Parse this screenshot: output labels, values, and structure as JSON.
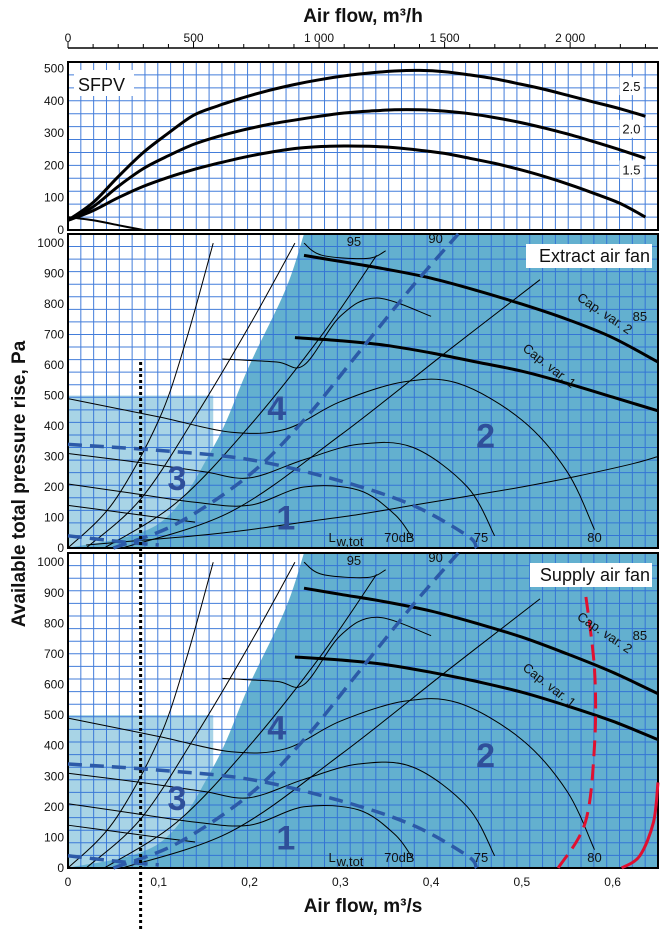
{
  "chart_data": [
    {
      "type": "line",
      "panel": "sfp",
      "title": "SFPV",
      "xlabel": "Air flow, m³/h",
      "xticks": [
        "0",
        "500",
        "1 000",
        "1 500",
        "2 000"
      ],
      "yticks": [
        "0",
        "100",
        "200",
        "300",
        "400",
        "500"
      ],
      "xlim": [
        0,
        2350
      ],
      "ylim": [
        0,
        520
      ],
      "series": [
        {
          "name": "2.5",
          "x": [
            0,
            100,
            200,
            300,
            400,
            500,
            600,
            700,
            800,
            900,
            1000,
            1100,
            1200,
            1300,
            1400,
            1500,
            1600,
            1700,
            1800,
            1900,
            2000,
            2100,
            2200,
            2300
          ],
          "y": [
            30,
            85,
            165,
            240,
            300,
            355,
            385,
            410,
            432,
            450,
            465,
            477,
            486,
            492,
            494,
            490,
            480,
            468,
            452,
            435,
            415,
            395,
            375,
            352
          ]
        },
        {
          "name": "2.0",
          "x": [
            0,
            100,
            200,
            300,
            400,
            500,
            600,
            700,
            800,
            900,
            1000,
            1100,
            1200,
            1300,
            1400,
            1500,
            1600,
            1700,
            1800,
            1900,
            2000,
            2100,
            2200,
            2300
          ],
          "y": [
            30,
            72,
            135,
            190,
            230,
            265,
            290,
            310,
            327,
            340,
            352,
            362,
            368,
            372,
            372,
            368,
            360,
            348,
            333,
            315,
            295,
            272,
            248,
            222
          ]
        },
        {
          "name": "1.5",
          "x": [
            0,
            100,
            200,
            300,
            400,
            500,
            600,
            700,
            800,
            900,
            1000,
            1100,
            1200,
            1300,
            1400,
            1500,
            1600,
            1700,
            1800,
            1900,
            2000,
            2100,
            2200,
            2300
          ],
          "y": [
            30,
            60,
            100,
            135,
            163,
            187,
            207,
            225,
            240,
            252,
            258,
            260,
            259,
            255,
            247,
            237,
            222,
            206,
            187,
            165,
            140,
            112,
            82,
            40
          ]
        },
        {
          "name": "",
          "x": [
            0,
            100,
            200,
            300
          ],
          "y": [
            40,
            30,
            15,
            0
          ]
        }
      ],
      "curve_labels": [
        "2.5",
        "2.0",
        "1.5"
      ]
    },
    {
      "type": "line",
      "panel": "extract",
      "title": "Extract air fan",
      "ylabel": "Available total pressure rise, Pa",
      "yticks": [
        "0",
        "100",
        "200",
        "300",
        "400",
        "500",
        "600",
        "700",
        "800",
        "900",
        "1000"
      ],
      "xlim": [
        0,
        0.65
      ],
      "ylim": [
        0,
        1030
      ],
      "capacity_labels": [
        "Cap. var. 2",
        "Cap. var. 1"
      ],
      "zones": [
        "1",
        "2",
        "3",
        "4"
      ],
      "sound_labels": [
        "95",
        "90",
        "85",
        "80",
        "75",
        "70dB"
      ],
      "sound_prefix": "L",
      "sound_subscript": "w,tot",
      "series": [
        {
          "name": "Cap. var. 2",
          "x": [
            0.26,
            0.3,
            0.35,
            0.4,
            0.45,
            0.5,
            0.55,
            0.6,
            0.65
          ],
          "y": [
            960,
            940,
            915,
            885,
            845,
            800,
            750,
            690,
            610
          ]
        },
        {
          "name": "Cap. var. 1",
          "x": [
            0.25,
            0.3,
            0.35,
            0.4,
            0.45,
            0.5,
            0.55,
            0.6,
            0.65
          ],
          "y": [
            690,
            680,
            665,
            640,
            610,
            580,
            540,
            495,
            450
          ]
        },
        {
          "name": "",
          "x": [
            0.02,
            0.08,
            0.14,
            0.2,
            0.26,
            0.32,
            0.38,
            0.44,
            0.5,
            0.56,
            0.62,
            0.65
          ],
          "y": [
            10,
            25,
            40,
            60,
            85,
            110,
            140,
            170,
            200,
            235,
            275,
            300
          ]
        }
      ]
    },
    {
      "type": "line",
      "panel": "supply",
      "title": "Supply air fan",
      "xlabel": "Air flow, m³/s",
      "xticks": [
        "0",
        "0,1",
        "0,2",
        "0,3",
        "0,4",
        "0,5",
        "0,6"
      ],
      "yticks": [
        "0",
        "100",
        "200",
        "300",
        "400",
        "500",
        "600",
        "700",
        "800",
        "900",
        "1000"
      ],
      "xlim": [
        0,
        0.65
      ],
      "ylim": [
        0,
        1030
      ],
      "capacity_labels": [
        "Cap. var. 2",
        "Cap. var. 1"
      ],
      "zones": [
        "1",
        "2",
        "3",
        "4"
      ],
      "sound_labels": [
        "95",
        "90",
        "85",
        "80",
        "75",
        "70dB"
      ],
      "sound_prefix": "L",
      "sound_subscript": "w,tot",
      "series": [
        {
          "name": "Cap. var. 2",
          "x": [
            0.26,
            0.3,
            0.35,
            0.4,
            0.45,
            0.5,
            0.55,
            0.6,
            0.65
          ],
          "y": [
            915,
            895,
            870,
            840,
            800,
            755,
            700,
            640,
            570
          ]
        },
        {
          "name": "Cap. var. 1",
          "x": [
            0.25,
            0.3,
            0.35,
            0.4,
            0.45,
            0.5,
            0.55,
            0.6,
            0.65
          ],
          "y": [
            690,
            680,
            665,
            640,
            610,
            575,
            530,
            480,
            420
          ]
        }
      ]
    }
  ],
  "colors": {
    "grid": "#2f6fd6",
    "light_fill": "#a8d4e6",
    "dark_fill": "#63b0cf",
    "curve": "#000000",
    "dashed": "#2c5aa8",
    "red": "#e01030",
    "zone_text": "#2f4f9a"
  }
}
